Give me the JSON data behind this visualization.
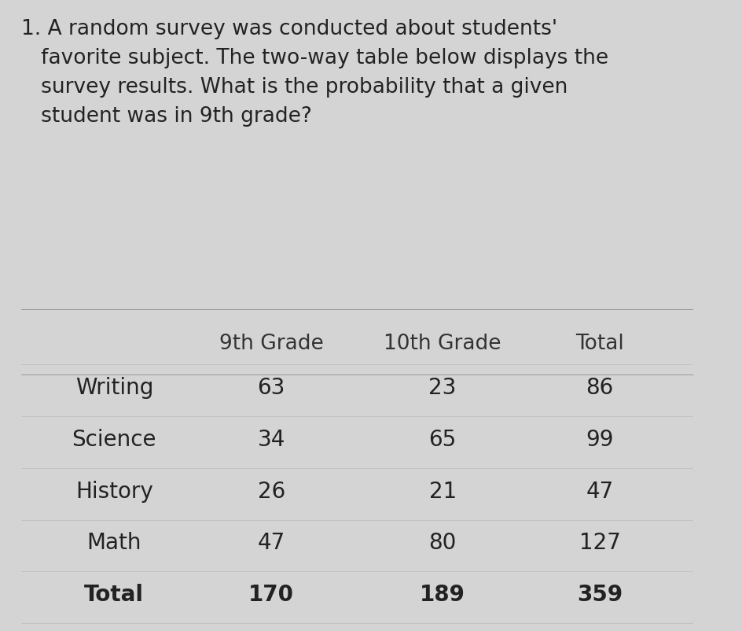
{
  "question_text": "1. A random survey was conducted about students'\n   favorite subject. The two-way table below displays the\n   survey results. What is the probability that a given\n   student was in 9th grade?",
  "col_headers": [
    "",
    "9th Grade",
    "10th Grade",
    "Total"
  ],
  "rows": [
    [
      "Writing",
      "63",
      "23",
      "86"
    ],
    [
      "Science",
      "34",
      "65",
      "99"
    ],
    [
      "History",
      "26",
      "21",
      "47"
    ],
    [
      "Math",
      "47",
      "80",
      "127"
    ],
    [
      "Total",
      "170",
      "189",
      "359"
    ]
  ],
  "bg_color": "#d4d4d4",
  "text_color": "#222222",
  "header_color": "#333333",
  "question_fontsize": 19,
  "header_fontsize": 19,
  "cell_fontsize": 20,
  "row_label_fontsize": 20,
  "fig_width": 9.45,
  "fig_height": 8.02
}
